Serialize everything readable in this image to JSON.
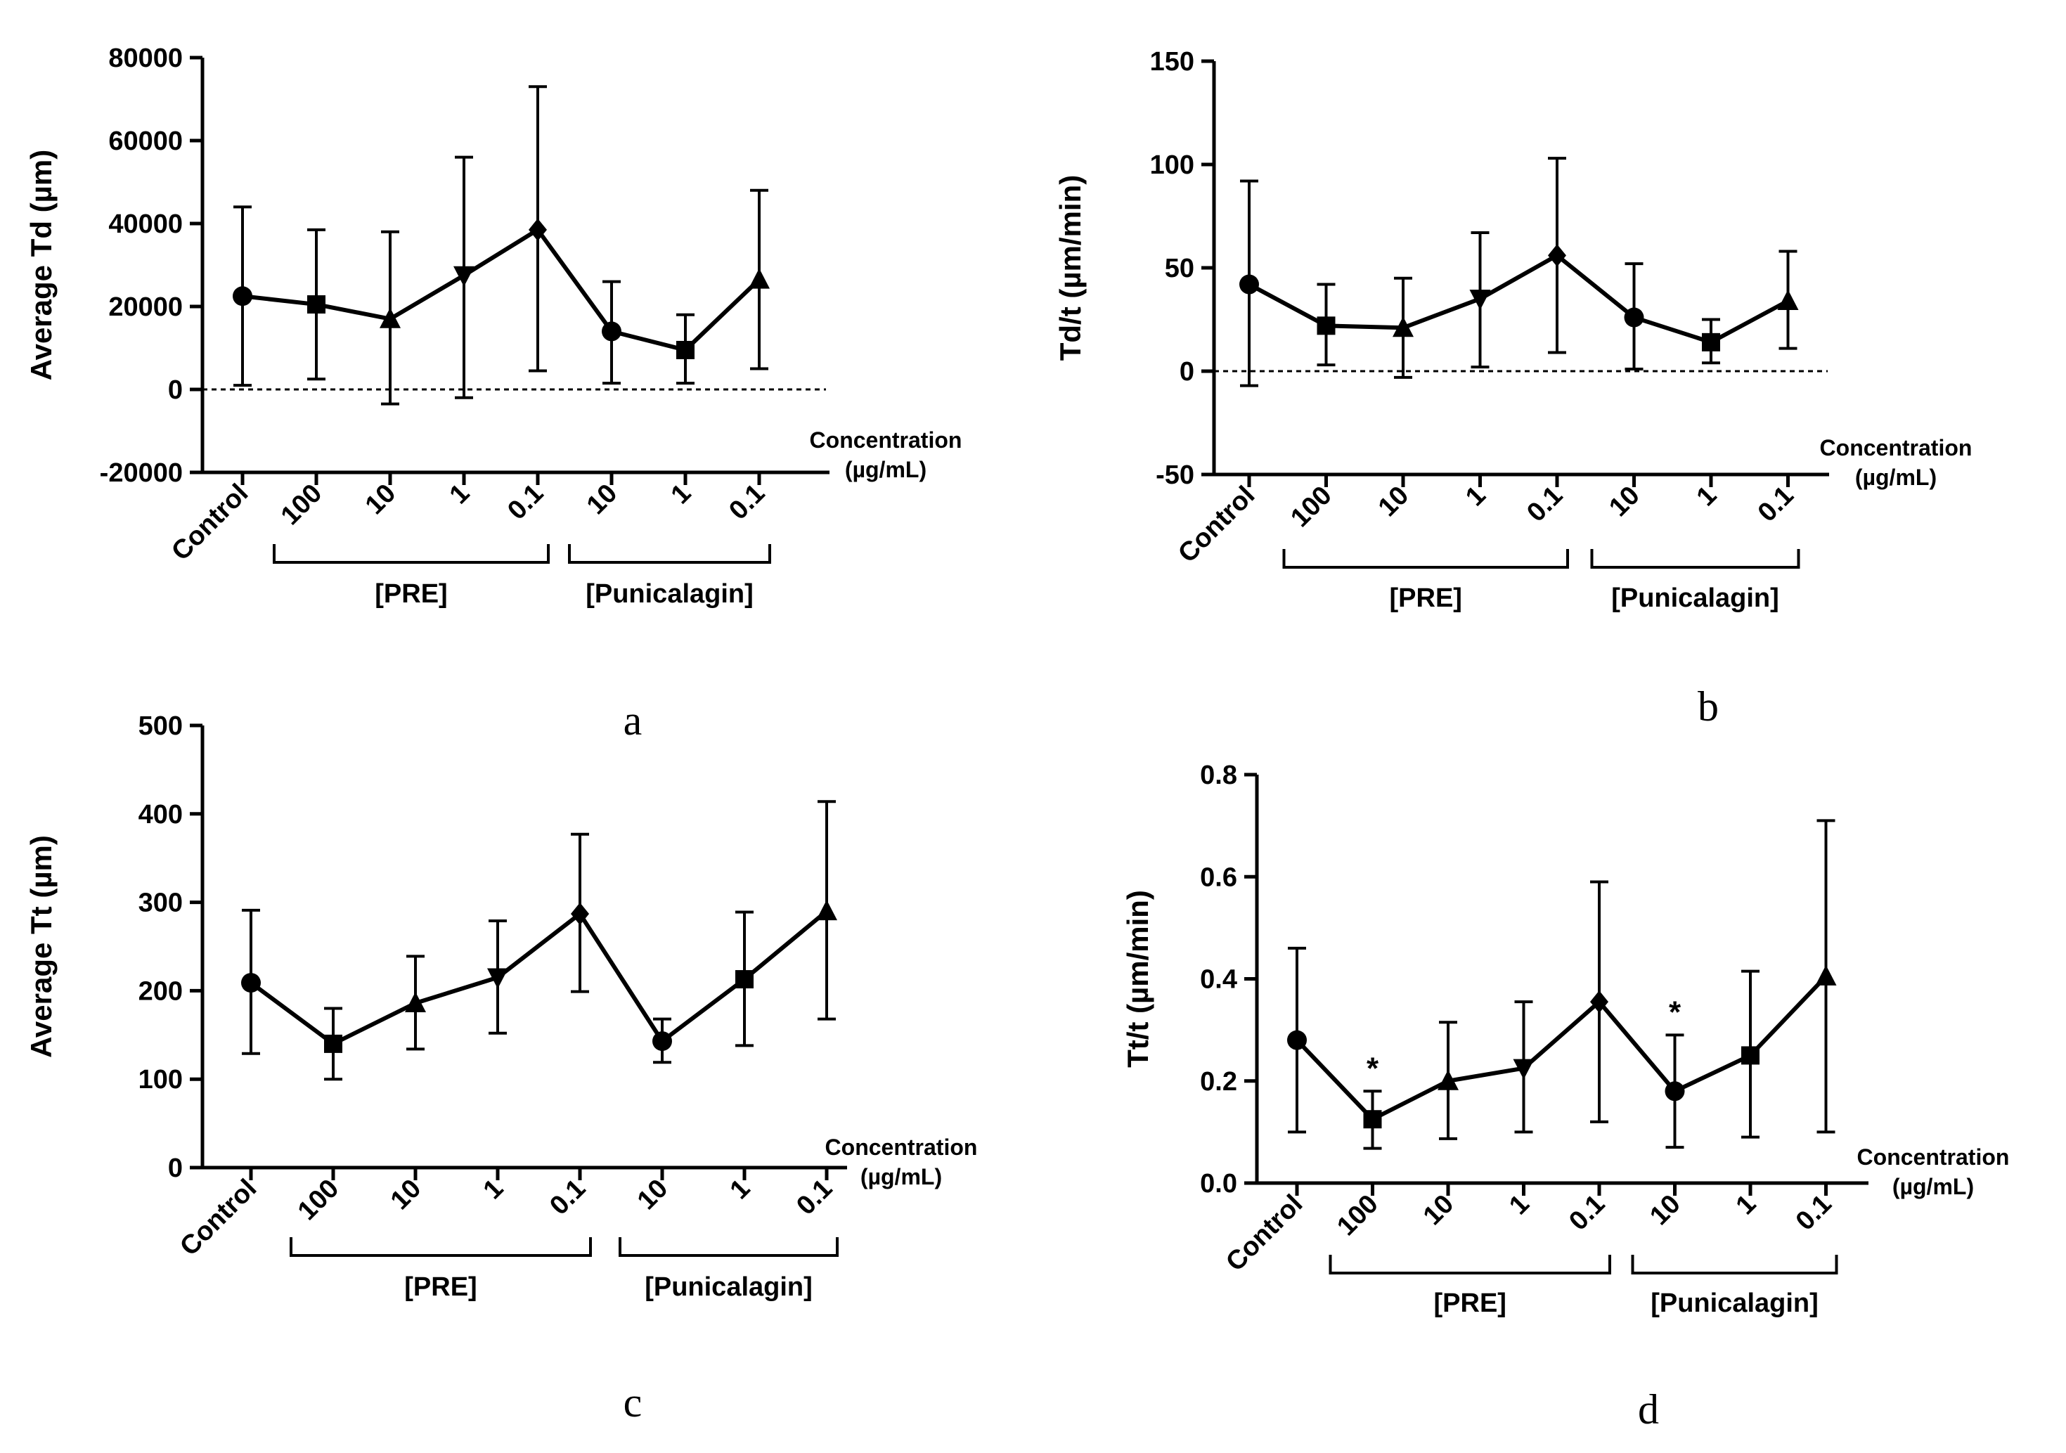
{
  "chart_data": [
    {
      "type": "line",
      "panel_label": "a",
      "ylabel": "Average Td (µm)",
      "ylim": [
        -20000,
        80000
      ],
      "yticks": [
        "-20000",
        "0",
        "20000",
        "40000",
        "60000",
        "80000"
      ],
      "ytick_values": [
        -20000,
        0,
        20000,
        40000,
        60000,
        80000
      ],
      "x_title": [
        "Concentration",
        "(µg/mL)"
      ],
      "categories": [
        "Control",
        "100",
        "10",
        "1",
        "0.1",
        "10",
        "1",
        "0.1"
      ],
      "markers": [
        "circle",
        "square",
        "triangle-up",
        "triangle-down",
        "diamond",
        "circle",
        "square",
        "triangle-up"
      ],
      "values": [
        22500,
        20500,
        17000,
        27500,
        38500,
        14000,
        9500,
        26500
      ],
      "err_upper": [
        44000,
        38500,
        38000,
        56000,
        73000,
        26000,
        18000,
        48000
      ],
      "err_lower": [
        1000,
        2500,
        -3500,
        -2000,
        4500,
        1500,
        1500,
        5000
      ],
      "groups": [
        {
          "label": "[PRE]",
          "from": 1,
          "to": 4
        },
        {
          "label": "[Punicalagin]",
          "from": 5,
          "to": 7
        }
      ],
      "dashed_zero": true,
      "annotations": []
    },
    {
      "type": "line",
      "panel_label": "b",
      "ylabel": "Td/t (µm/min)",
      "ylim": [
        -50,
        150
      ],
      "yticks": [
        "-50",
        "0",
        "50",
        "100",
        "150"
      ],
      "ytick_values": [
        -50,
        0,
        50,
        100,
        150
      ],
      "x_title": [
        "Concentration",
        "(µg/mL)"
      ],
      "categories": [
        "Control",
        "100",
        "10",
        "1",
        "0.1",
        "10",
        "1",
        "0.1"
      ],
      "markers": [
        "circle",
        "square",
        "triangle-up",
        "triangle-down",
        "diamond",
        "circle",
        "square",
        "triangle-up"
      ],
      "values": [
        42,
        22,
        21,
        35,
        56,
        26,
        14,
        34
      ],
      "err_upper": [
        92,
        42,
        45,
        67,
        103,
        52,
        25,
        58
      ],
      "err_lower": [
        -7,
        3,
        -3,
        2,
        9,
        1,
        4,
        11
      ],
      "groups": [
        {
          "label": "[PRE]",
          "from": 1,
          "to": 4
        },
        {
          "label": "[Punicalagin]",
          "from": 5,
          "to": 7
        }
      ],
      "dashed_zero": true,
      "annotations": []
    },
    {
      "type": "line",
      "panel_label": "c",
      "ylabel": "Average Tt (µm)",
      "ylim": [
        0,
        500
      ],
      "yticks": [
        "0",
        "100",
        "200",
        "300",
        "400",
        "500"
      ],
      "ytick_values": [
        0,
        100,
        200,
        300,
        400,
        500
      ],
      "x_title": [
        "Concentration",
        "(µg/mL)"
      ],
      "categories": [
        "Control",
        "100",
        "10",
        "1",
        "0.1",
        "10",
        "1",
        "0.1"
      ],
      "markers": [
        "circle",
        "square",
        "triangle-up",
        "triangle-down",
        "diamond",
        "circle",
        "square",
        "triangle-up"
      ],
      "values": [
        209,
        140,
        186,
        215,
        287,
        143,
        213,
        290
      ],
      "err_upper": [
        291,
        180,
        239,
        279,
        377,
        168,
        289,
        414
      ],
      "err_lower": [
        129,
        100,
        134,
        152,
        199,
        119,
        138,
        168
      ],
      "groups": [
        {
          "label": "[PRE]",
          "from": 1,
          "to": 4
        },
        {
          "label": "[Punicalagin]",
          "from": 5,
          "to": 7
        }
      ],
      "dashed_zero": false,
      "annotations": []
    },
    {
      "type": "line",
      "panel_label": "d",
      "ylabel": "Tt/t (µm/min)",
      "ylim": [
        0,
        0.8
      ],
      "yticks": [
        "0.0",
        "0.2",
        "0.4",
        "0.6",
        "0.8"
      ],
      "ytick_values": [
        0,
        0.2,
        0.4,
        0.6,
        0.8
      ],
      "x_title": [
        "Concentration",
        "(µg/mL)"
      ],
      "categories": [
        "Control",
        "100",
        "10",
        "1",
        "0.1",
        "10",
        "1",
        "0.1"
      ],
      "markers": [
        "circle",
        "square",
        "triangle-up",
        "triangle-down",
        "diamond",
        "circle",
        "square",
        "triangle-up"
      ],
      "values": [
        0.28,
        0.125,
        0.2,
        0.225,
        0.355,
        0.18,
        0.25,
        0.405
      ],
      "err_upper": [
        0.46,
        0.18,
        0.315,
        0.355,
        0.59,
        0.29,
        0.415,
        0.71
      ],
      "err_lower": [
        0.1,
        0.068,
        0.087,
        0.1,
        0.12,
        0.07,
        0.09,
        0.1
      ],
      "groups": [
        {
          "label": "[PRE]",
          "from": 1,
          "to": 4
        },
        {
          "label": "[Punicalagin]",
          "from": 5,
          "to": 7
        }
      ],
      "dashed_zero": false,
      "annotations": [
        {
          "text": "*",
          "index": 1
        },
        {
          "text": "*",
          "index": 5
        }
      ]
    }
  ]
}
